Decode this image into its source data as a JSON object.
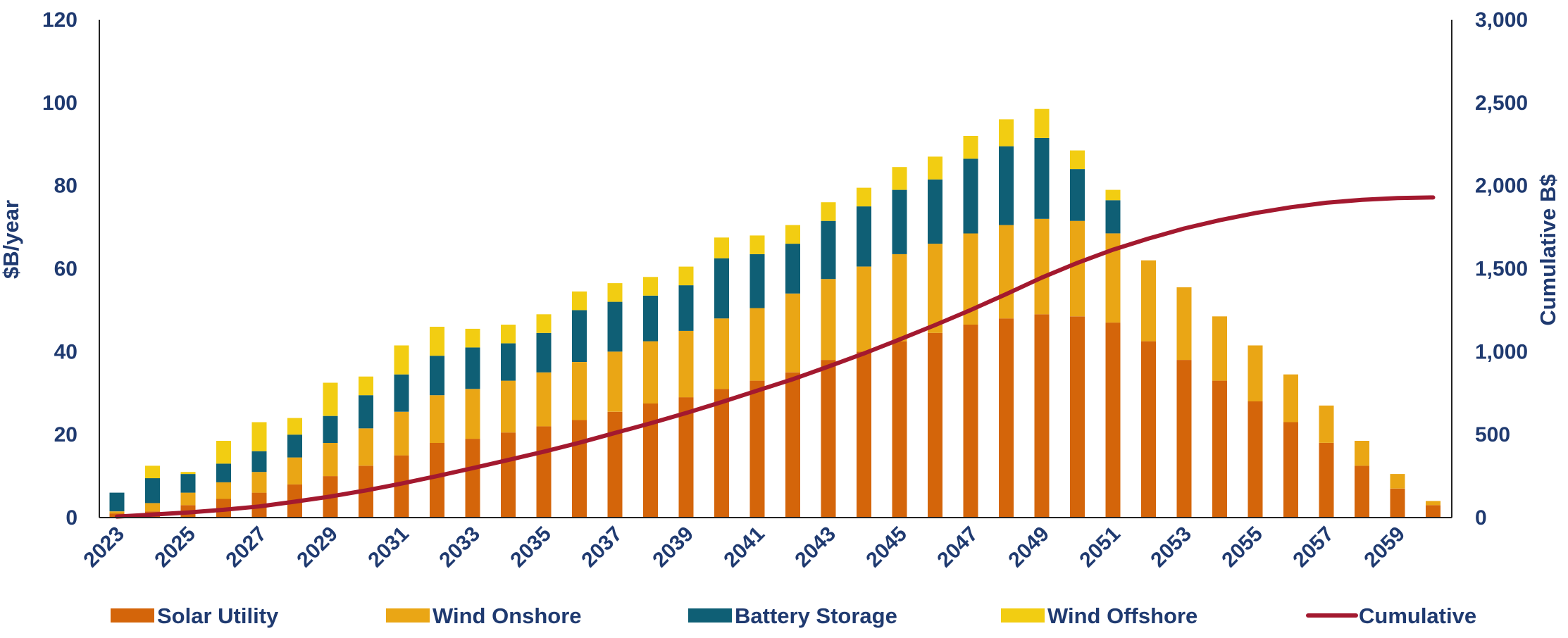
{
  "chart_data": {
    "type": "bar",
    "stacked": true,
    "x": [
      2023,
      2024,
      2025,
      2026,
      2027,
      2028,
      2029,
      2030,
      2031,
      2032,
      2033,
      2034,
      2035,
      2036,
      2037,
      2038,
      2039,
      2040,
      2041,
      2042,
      2043,
      2044,
      2045,
      2046,
      2047,
      2048,
      2049,
      2050,
      2051,
      2052,
      2053,
      2054,
      2055,
      2056,
      2057,
      2058,
      2059,
      2060
    ],
    "x_tick_labels": [
      "2023",
      "2025",
      "2027",
      "2029",
      "2031",
      "2033",
      "2035",
      "2037",
      "2039",
      "2041",
      "2043",
      "2045",
      "2047",
      "2049",
      "2051",
      "2053",
      "2055",
      "2057",
      "2059"
    ],
    "ylabel": "$B/year",
    "ylim": [
      0,
      120
    ],
    "y_ticks": [
      "0",
      "20",
      "40",
      "60",
      "80",
      "100",
      "120"
    ],
    "y2label": "Cumulative B$",
    "y2lim": [
      0,
      3000
    ],
    "y2_ticks": [
      "0",
      "500",
      "1,000",
      "1,500",
      "2,000",
      "2,500",
      "3,000"
    ],
    "series": [
      {
        "name": "Solar Utility",
        "color": "#d4650a",
        "values": [
          1.0,
          1.5,
          3.0,
          4.5,
          6.0,
          8.0,
          10.0,
          12.5,
          15.0,
          18.0,
          19.0,
          20.5,
          22.0,
          23.5,
          25.5,
          27.5,
          29.0,
          31.0,
          33.0,
          35.0,
          38.0,
          40.0,
          42.5,
          44.5,
          46.5,
          48.0,
          49.0,
          48.5,
          47.0,
          42.5,
          38.0,
          33.0,
          28.0,
          23.0,
          18.0,
          12.5,
          7.0,
          3.0
        ]
      },
      {
        "name": "Wind Onshore",
        "color": "#eaa615",
        "values": [
          0.5,
          2.0,
          3.0,
          4.0,
          5.0,
          6.5,
          8.0,
          9.0,
          10.5,
          11.5,
          12.0,
          12.5,
          13.0,
          14.0,
          14.5,
          15.0,
          16.0,
          17.0,
          17.5,
          19.0,
          19.5,
          20.5,
          21.0,
          21.5,
          22.0,
          22.5,
          23.0,
          23.0,
          21.5,
          19.5,
          17.5,
          15.5,
          13.5,
          11.5,
          9.0,
          6.0,
          3.5,
          1.0
        ]
      },
      {
        "name": "Battery Storage",
        "color": "#0f5f75",
        "values": [
          4.5,
          6.0,
          4.5,
          4.5,
          5.0,
          5.5,
          6.5,
          8.0,
          9.0,
          9.5,
          10.0,
          9.0,
          9.5,
          12.5,
          12.0,
          11.0,
          11.0,
          14.5,
          13.0,
          12.0,
          14.0,
          14.5,
          15.5,
          15.5,
          18.0,
          19.0,
          19.5,
          12.5,
          8.0,
          0,
          0,
          0,
          0,
          0,
          0,
          0,
          0,
          0
        ]
      },
      {
        "name": "Wind Offshore",
        "color": "#f2cd12",
        "values": [
          0,
          3.0,
          0.5,
          5.5,
          7.0,
          4.0,
          8.0,
          4.5,
          7.0,
          7.0,
          4.5,
          4.5,
          4.5,
          4.5,
          4.5,
          4.5,
          4.5,
          5.0,
          4.5,
          4.5,
          4.5,
          4.5,
          5.5,
          5.5,
          5.5,
          6.5,
          7.0,
          4.5,
          2.5,
          0,
          0,
          0,
          0,
          0,
          0,
          0,
          0,
          0
        ]
      }
    ],
    "line": {
      "name": "Cumulative",
      "color": "#a3192f",
      "axis": "right",
      "values": [
        6,
        18,
        31,
        47,
        67,
        96,
        127,
        164,
        205,
        250,
        298,
        347,
        397,
        451,
        510,
        568,
        630,
        696,
        765,
        834,
        910,
        989,
        1073,
        1160,
        1251,
        1347,
        1446,
        1535,
        1614,
        1681,
        1742,
        1792,
        1835,
        1870,
        1897,
        1915,
        1925,
        1929
      ]
    },
    "legend_position": "bottom",
    "grid": false
  }
}
